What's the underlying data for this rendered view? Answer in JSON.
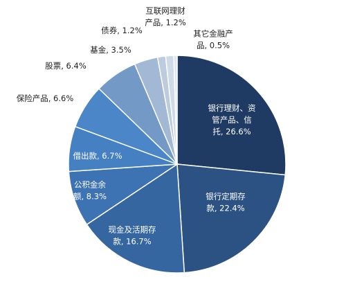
{
  "chart_data": {
    "type": "pie",
    "title": "",
    "start_angle_deg": 0,
    "direction": "clockwise",
    "slices": [
      {
        "label_lines": [
          "银行理财、资",
          "管产品、信",
          "托, 26.6%"
        ],
        "value": 26.6,
        "color": "#1f3a63",
        "label_pos": "inside"
      },
      {
        "label_lines": [
          "银行定期存",
          "款, 22.4%"
        ],
        "value": 22.4,
        "color": "#2c5283",
        "label_pos": "inside"
      },
      {
        "label_lines": [
          "现金及活期存",
          "款, 16.7%"
        ],
        "value": 16.7,
        "color": "#3566a0",
        "label_pos": "inside"
      },
      {
        "label_lines": [
          "公积金余",
          "额, 8.3%"
        ],
        "value": 8.3,
        "color": "#3d73b3",
        "label_pos": "inside"
      },
      {
        "label_lines": [
          "借出款, 6.7%"
        ],
        "value": 6.7,
        "color": "#4580c2",
        "label_pos": "inside"
      },
      {
        "label_lines": [
          "保险产品, 6.6%"
        ],
        "value": 6.6,
        "color": "#4a86c8",
        "label_pos": "outside"
      },
      {
        "label_lines": [
          "股票, 6.4%"
        ],
        "value": 6.4,
        "color": "#7399c7",
        "label_pos": "outside"
      },
      {
        "label_lines": [
          "基金, 3.5%"
        ],
        "value": 3.5,
        "color": "#a2b8d4",
        "label_pos": "outside"
      },
      {
        "label_lines": [
          "债券, 1.2%"
        ],
        "value": 1.2,
        "color": "#bccbde",
        "label_pos": "outside"
      },
      {
        "label_lines": [
          "互联网理财",
          "产品, 1.2%"
        ],
        "value": 1.2,
        "color": "#cfdae8",
        "label_pos": "outside"
      },
      {
        "label_lines": [
          "其它金融产",
          "品, 0.5%"
        ],
        "value": 0.5,
        "color": "#dfe7f1",
        "label_pos": "outside"
      }
    ]
  }
}
